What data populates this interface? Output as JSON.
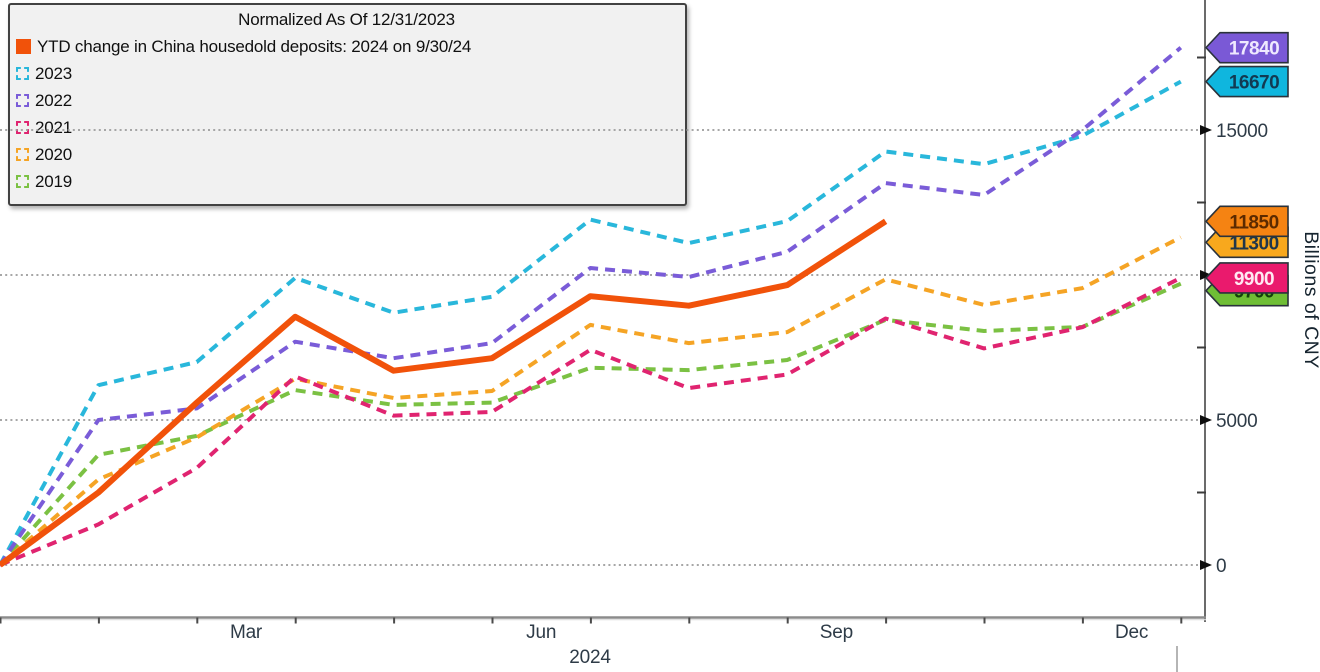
{
  "legend": {
    "title": "Normalized As Of 12/31/2023",
    "items": [
      {
        "label": "YTD change in China housedold deposits: 2024 on 9/30/24",
        "color": "#f1520a",
        "swatch": "solid"
      },
      {
        "label": "2023",
        "color": "#29b7db",
        "swatch": "dashed"
      },
      {
        "label": "2022",
        "color": "#7a5cd8",
        "swatch": "dashed"
      },
      {
        "label": "2021",
        "color": "#e02470",
        "swatch": "dashed"
      },
      {
        "label": "2020",
        "color": "#f5a425",
        "swatch": "dashed"
      },
      {
        "label": "2019",
        "color": "#7bc143",
        "swatch": "dashed"
      }
    ]
  },
  "y_axis": {
    "label": "Billions of CNY",
    "tick_labels": [
      "0",
      "5000",
      "15000"
    ],
    "tick_values": [
      0,
      5000,
      15000
    ],
    "arrow_values": [
      0,
      5000,
      10000,
      15000
    ],
    "minor_tick_values": [
      2500,
      7500,
      12500,
      17500
    ],
    "range": [
      0,
      19400
    ]
  },
  "x_axis": {
    "month_labels": [
      "Mar",
      "Jun",
      "Sep",
      "Dec"
    ],
    "month_label_positions": [
      2.5,
      5.5,
      8.5,
      11.5
    ],
    "year_label": "2024"
  },
  "chart_data": {
    "type": "line",
    "title": "Normalized As Of 12/31/2023",
    "ylabel": "Billions of CNY",
    "unit": "billions of CNY, cumulative YTD change in China household deposits",
    "x_unit": "monthly points starting Dec 31 (value 0) through each month-end",
    "grid": "horizontal dotted at 0, 5000, 10000, 15000",
    "legend_position": "top-left box",
    "series": [
      {
        "name": "2024 YTD change in China housedold deposits (on 9/30/24)",
        "color": "#f1520a",
        "style": "solid",
        "tag": {
          "value": 11850,
          "fill": "#f58312",
          "text_color": "#5c2a00"
        },
        "values": [
          0,
          2500,
          5600,
          8560,
          6700,
          7130,
          9270,
          8940,
          9650,
          11850
        ]
      },
      {
        "name": "2023",
        "color": "#29b7db",
        "style": "dashed",
        "tag": {
          "value": 16670,
          "fill": "#0fb6de",
          "text_color": "#123a52"
        },
        "values": [
          0,
          6200,
          7000,
          9900,
          8700,
          9250,
          11910,
          11100,
          11860,
          14260,
          13820,
          14800,
          16670
        ]
      },
      {
        "name": "2022",
        "color": "#7a5cd8",
        "style": "dashed",
        "tag": {
          "value": 17840,
          "fill": "#7a59d6",
          "text_color": "#efe9ff"
        },
        "values": [
          0,
          5000,
          5400,
          7700,
          7130,
          7650,
          10240,
          9930,
          10800,
          13170,
          12760,
          15000,
          17840
        ]
      },
      {
        "name": "2021",
        "color": "#e02470",
        "style": "dashed",
        "tag": {
          "value": 9900,
          "fill": "#ea1a6d",
          "text_color": "#ffe9f2"
        },
        "values": [
          0,
          1400,
          3350,
          6500,
          5150,
          5280,
          7420,
          6100,
          6570,
          8500,
          7470,
          8200,
          9900
        ]
      },
      {
        "name": "2020",
        "color": "#f5a425",
        "style": "dashed",
        "tag": {
          "value": 11300,
          "fill": "#f8a81d",
          "text_color": "#20364a"
        },
        "values": [
          0,
          2950,
          4400,
          6420,
          5760,
          6000,
          8280,
          7650,
          8030,
          9850,
          8970,
          9550,
          11300
        ]
      },
      {
        "name": "2019",
        "color": "#7bc143",
        "style": "dashed",
        "tag": {
          "value": 9700,
          "fill": "#6fbe35",
          "text_color": "#12400a"
        },
        "values": [
          0,
          3800,
          4450,
          6030,
          5520,
          5600,
          6800,
          6720,
          7070,
          8450,
          8070,
          8210,
          9700
        ]
      }
    ]
  }
}
